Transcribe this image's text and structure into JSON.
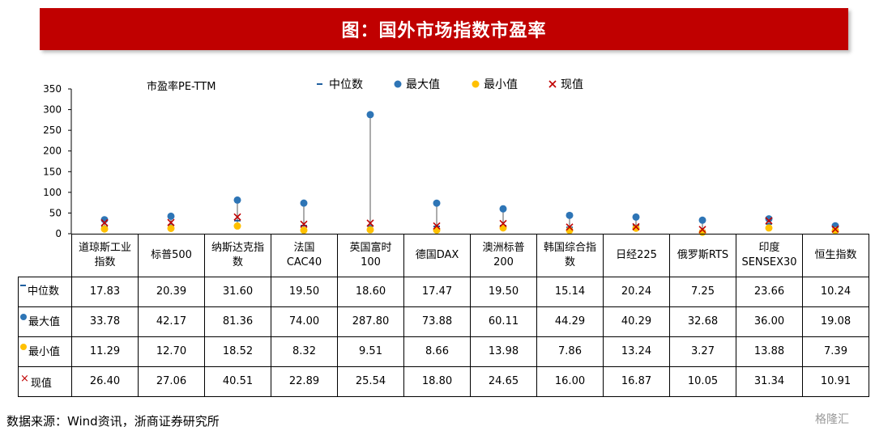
{
  "banner": {
    "title": "图：国外市场指数市盈率"
  },
  "chart_data": {
    "type": "scatter",
    "ylabel": "市盈率PE-TTM",
    "ylim": [
      0,
      350
    ],
    "yticks": [
      "0",
      "50",
      "100",
      "150",
      "200",
      "250",
      "300",
      "350"
    ],
    "categories": [
      [
        "道琼斯工业",
        "指数"
      ],
      [
        "标普500"
      ],
      [
        "纳斯达克指",
        "数"
      ],
      [
        "法国",
        "CAC40"
      ],
      [
        "英国富时",
        "100"
      ],
      [
        "德国DAX"
      ],
      [
        "澳洲标普",
        "200"
      ],
      [
        "韩国综合指",
        "数"
      ],
      [
        "日经225"
      ],
      [
        "俄罗斯RTS"
      ],
      [
        "印度",
        "SENSEX30"
      ],
      [
        "恒生指数"
      ]
    ],
    "series": [
      {
        "name": "中位数",
        "color": "#1f5fa0",
        "marker": "dash",
        "values": [
          17.83,
          20.39,
          31.6,
          19.5,
          18.6,
          17.47,
          19.5,
          15.14,
          20.24,
          7.25,
          23.66,
          10.24
        ],
        "labels": [
          "17.83",
          "20.39",
          "31.60",
          "19.50",
          "18.60",
          "17.47",
          "19.50",
          "15.14",
          "20.24",
          "7.25",
          "23.66",
          "10.24"
        ]
      },
      {
        "name": "最大值",
        "color": "#2e75b6",
        "marker": "circle",
        "values": [
          33.78,
          42.17,
          81.36,
          74.0,
          287.8,
          73.88,
          60.11,
          44.29,
          40.29,
          32.68,
          36.0,
          19.08
        ],
        "labels": [
          "33.78",
          "42.17",
          "81.36",
          "74.00",
          "287.80",
          "73.88",
          "60.11",
          "44.29",
          "40.29",
          "32.68",
          "36.00",
          "19.08"
        ]
      },
      {
        "name": "最小值",
        "color": "#ffc000",
        "marker": "circle",
        "values": [
          11.29,
          12.7,
          18.52,
          8.32,
          9.51,
          8.66,
          13.98,
          7.86,
          13.24,
          3.27,
          13.88,
          7.39
        ],
        "labels": [
          "11.29",
          "12.70",
          "18.52",
          "8.32",
          "9.51",
          "8.66",
          "13.98",
          "7.86",
          "13.24",
          "3.27",
          "13.88",
          "7.39"
        ]
      },
      {
        "name": "现值",
        "color": "#c00000",
        "marker": "x",
        "values": [
          26.4,
          27.06,
          40.51,
          22.89,
          25.54,
          18.8,
          24.65,
          16.0,
          16.87,
          10.05,
          31.34,
          10.91
        ],
        "labels": [
          "26.40",
          "27.06",
          "40.51",
          "22.89",
          "25.54",
          "18.80",
          "24.65",
          "16.00",
          "16.87",
          "10.05",
          "31.34",
          "10.91"
        ]
      }
    ]
  },
  "footer": {
    "source": "数据来源：Wind资讯，浙商证券研究所",
    "watermark": "格隆汇"
  }
}
